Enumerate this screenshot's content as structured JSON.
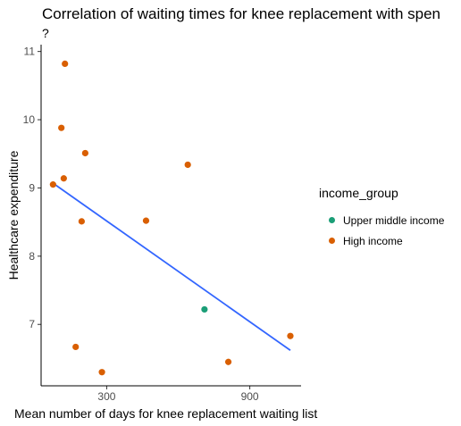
{
  "chart_data": {
    "type": "scatter",
    "title": "Correlation of waiting times for knee replacement with spen",
    "subtitle": "?",
    "xlabel": "Mean number of days for knee replacement waiting list",
    "ylabel": "Healthcare expenditure",
    "xlim": [
      25,
      1115
    ],
    "ylim": [
      6.1,
      11.1
    ],
    "xticks": [
      300,
      900
    ],
    "yticks": [
      7,
      8,
      9,
      10,
      11
    ],
    "legend": {
      "title": "income_group",
      "position": "right",
      "entries": [
        {
          "name": "Upper middle income",
          "color": "#1b9e77"
        },
        {
          "name": "High income",
          "color": "#d95f02"
        }
      ]
    },
    "series": [
      {
        "name": "Upper middle income",
        "color": "#1b9e77",
        "points": [
          [
            710,
            7.22
          ]
        ]
      },
      {
        "name": "High income",
        "color": "#d95f02",
        "points": [
          [
            125,
            10.82
          ],
          [
            110,
            9.88
          ],
          [
            210,
            9.51
          ],
          [
            120,
            9.14
          ],
          [
            75,
            9.05
          ],
          [
            195,
            8.51
          ],
          [
            465,
            8.52
          ],
          [
            640,
            9.34
          ],
          [
            170,
            6.67
          ],
          [
            280,
            6.3
          ],
          [
            810,
            6.45
          ],
          [
            1070,
            6.83
          ]
        ]
      }
    ],
    "trend_line": {
      "color": "#3366ff",
      "points": [
        [
          75,
          9.07
        ],
        [
          1070,
          6.62
        ]
      ]
    }
  }
}
